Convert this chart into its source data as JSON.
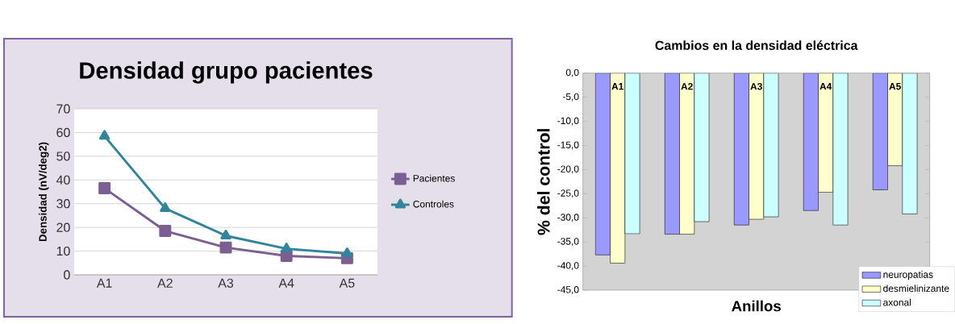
{
  "chart_data": [
    {
      "type": "line",
      "title": "Densidad grupo pacientes",
      "ylabel": "Densidad (nV/deg2)",
      "categories": [
        "A1",
        "A2",
        "A3",
        "A4",
        "A5"
      ],
      "series": [
        {
          "name": "Pacientes",
          "color": "#7b5f93",
          "marker": "square",
          "values": [
            36.5,
            18.5,
            11.5,
            8,
            7
          ]
        },
        {
          "name": "Controles",
          "color": "#31849b",
          "marker": "triangle",
          "values": [
            58.5,
            28,
            16.5,
            11,
            9
          ]
        }
      ],
      "ylim": [
        0,
        70
      ],
      "yticks": [
        0,
        10,
        20,
        30,
        40,
        50,
        60,
        70
      ],
      "grid": "y",
      "legend": "right",
      "line_style": "solid"
    },
    {
      "type": "bar",
      "title": "Cambios en la densidad eléctrica",
      "xlabel": "Anillos",
      "ylabel": "%  del control",
      "categories": [
        "A1",
        "A2",
        "A3",
        "A4",
        "A5"
      ],
      "series": [
        {
          "name": "neuropatias",
          "color": "#9999ff",
          "values": [
            -37.7,
            -33.4,
            -31.5,
            -28.5,
            -24.2
          ]
        },
        {
          "name": "desmielinizante",
          "color": "#ffffcc",
          "values": [
            -39.4,
            -33.4,
            -30.3,
            -24.7,
            -19.2
          ]
        },
        {
          "name": "axonal",
          "color": "#ccffff",
          "values": [
            -33.3,
            -30.8,
            -29.8,
            -31.5,
            -29.2
          ]
        }
      ],
      "ylim": [
        -45,
        0
      ],
      "yticks": [
        {
          "value": -45,
          "label": "-45,0"
        },
        {
          "value": -40,
          "label": "-40,0"
        },
        {
          "value": -35,
          "label": "-35,0"
        },
        {
          "value": -30,
          "label": "-30,0"
        },
        {
          "value": -25,
          "label": "-25,0"
        },
        {
          "value": -20,
          "label": "-20,0"
        },
        {
          "value": -15,
          "label": "-15,0"
        },
        {
          "value": -10,
          "label": "-10,0"
        },
        {
          "value": -5,
          "label": "-5,0"
        },
        {
          "value": 0,
          "label": "0,0"
        }
      ],
      "grid": false,
      "legend": "bottom right"
    }
  ]
}
